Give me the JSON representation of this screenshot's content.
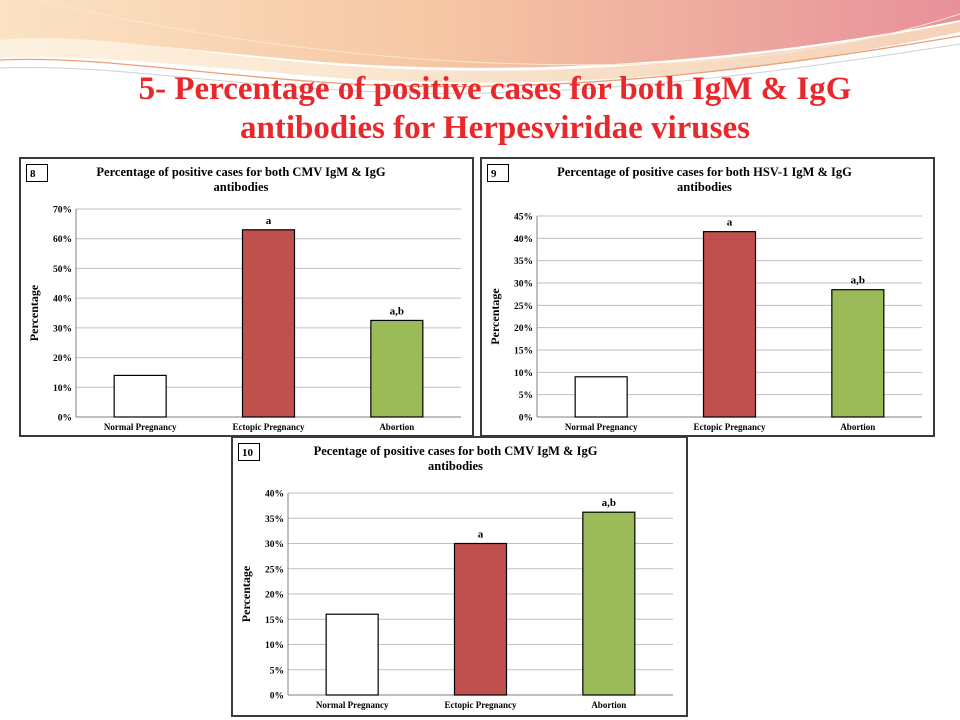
{
  "slide": {
    "title_line1": "5- Percentage of positive cases for both IgM & IgG",
    "title_line2": "antibodies for Herpesviridae viruses"
  },
  "colors": {
    "title": "#e8282b",
    "normal": "#ffffff",
    "ectopic": "#c0504d",
    "abortion": "#9bbb59"
  },
  "chart_data": [
    {
      "type": "bar",
      "panel_label": "8",
      "title_line1": "Percentage of positive cases for both CMV IgM & IgG",
      "title_line2": "antibodies",
      "ylabel": "Percentage",
      "xlabel": "",
      "categories": [
        "Normal Pregnancy",
        "Ectopic Pregnancy",
        "Abortion"
      ],
      "values": [
        14,
        63,
        32.5
      ],
      "bar_labels": [
        "",
        "a",
        "a,b"
      ],
      "ylim": [
        0,
        70
      ],
      "yticks": [
        0,
        10,
        20,
        30,
        40,
        50,
        60,
        70
      ],
      "ytick_labels": [
        "0%",
        "10%",
        "20%",
        "30%",
        "40%",
        "50%",
        "60%",
        "70%"
      ],
      "grid": true
    },
    {
      "type": "bar",
      "panel_label": "9",
      "title_line1": "Percentage of positive cases for both HSV-1 IgM & IgG",
      "title_line2": "antibodies",
      "ylabel": "Percentage",
      "xlabel": "",
      "categories": [
        "Normal Pregnancy",
        "Ectopic Pregnancy",
        "Abortion"
      ],
      "values": [
        9,
        41.5,
        28.5
      ],
      "bar_labels": [
        "",
        "a",
        "a,b"
      ],
      "ylim": [
        0,
        45
      ],
      "yticks": [
        0,
        5,
        10,
        15,
        20,
        25,
        30,
        35,
        40,
        45
      ],
      "ytick_labels": [
        "0%",
        "5%",
        "10%",
        "15%",
        "20%",
        "25%",
        "30%",
        "35%",
        "40%",
        "45%"
      ],
      "grid": true
    },
    {
      "type": "bar",
      "panel_label": "10",
      "title_line1": "Pecentage of positive cases for both CMV IgM & IgG",
      "title_line2": "antibodies",
      "ylabel": "Percentage",
      "xlabel": "",
      "categories": [
        "Normal Pregnancy",
        "Ectopic Pregnancy",
        "Abortion"
      ],
      "values": [
        16,
        30,
        36.2
      ],
      "bar_labels": [
        "",
        "a",
        "a,b"
      ],
      "ylim": [
        0,
        40
      ],
      "yticks": [
        0,
        5,
        10,
        15,
        20,
        25,
        30,
        35,
        40
      ],
      "ytick_labels": [
        "0%",
        "5%",
        "10%",
        "15%",
        "20%",
        "25%",
        "30%",
        "35%",
        "40%"
      ],
      "grid": true
    }
  ]
}
